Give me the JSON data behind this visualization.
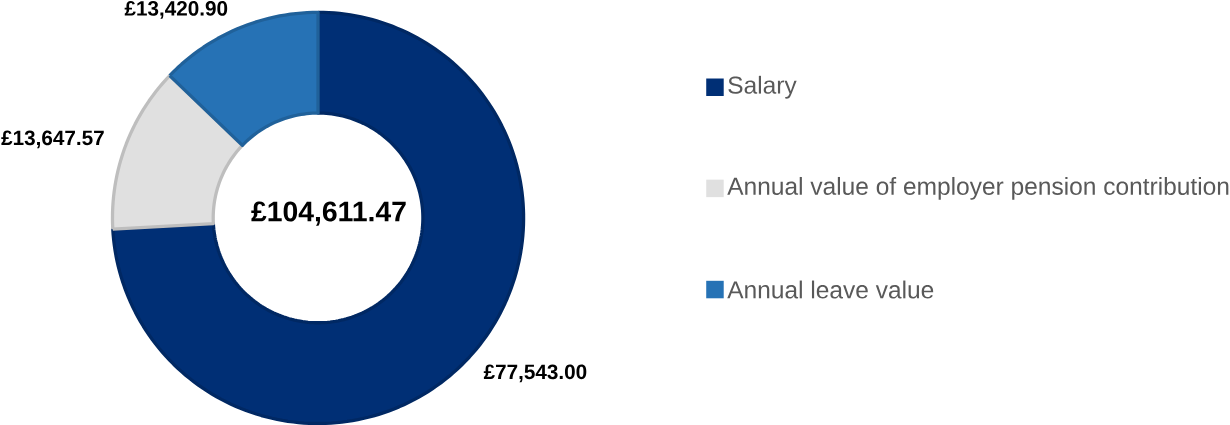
{
  "chart_data": {
    "type": "donut",
    "categories": [
      "Salary",
      "Annual value of employer pension contribution",
      "Annual leave value"
    ],
    "values": [
      77543.0,
      13647.57,
      13420.9
    ],
    "colors": [
      "#002f75",
      "#e0e0e0",
      "#2672b5"
    ],
    "value_labels": [
      "£77,543.00",
      "£13,647.57",
      "£13,420.90"
    ],
    "annotations": [
      "£104,611.47"
    ],
    "legend": "right"
  }
}
